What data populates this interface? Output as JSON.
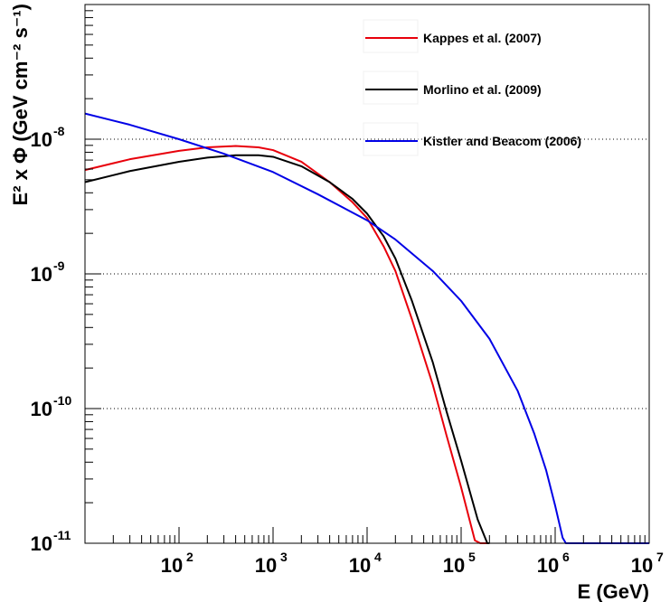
{
  "chart_data": {
    "type": "line",
    "title": "",
    "xlabel": "E (GeV)",
    "ylabel": "E² x Φ (GeV cm⁻² s⁻¹)",
    "xscale": "log",
    "yscale": "log",
    "xlim": [
      10,
      10000000
    ],
    "ylim": [
      1e-11,
      1e-07
    ],
    "grid": "horizontal dotted at major y ticks",
    "legend_position": "top-right",
    "x_ticks": [
      {
        "base": "10",
        "exp": "2",
        "value": 100
      },
      {
        "base": "10",
        "exp": "3",
        "value": 1000
      },
      {
        "base": "10",
        "exp": "4",
        "value": 10000
      },
      {
        "base": "10",
        "exp": "5",
        "value": 100000
      },
      {
        "base": "10",
        "exp": "6",
        "value": 1000000
      },
      {
        "base": "10",
        "exp": "7",
        "value": 10000000
      }
    ],
    "y_ticks": [
      {
        "base": "10",
        "exp": "-11",
        "value": 1e-11
      },
      {
        "base": "10",
        "exp": "-10",
        "value": 1e-10
      },
      {
        "base": "10",
        "exp": "-9",
        "value": 1e-09
      },
      {
        "base": "10",
        "exp": "-8",
        "value": 1e-08
      }
    ],
    "series": [
      {
        "name": "Kappes et al. (2007)",
        "color": "#e8000b",
        "x": [
          10,
          30,
          100,
          200,
          400,
          700,
          1000,
          2000,
          4000,
          7000,
          10000,
          15000,
          20000,
          30000,
          50000,
          70000,
          100000,
          140000,
          160000,
          200000
        ],
        "y": [
          5.9e-09,
          7.1e-09,
          8.2e-09,
          8.7e-09,
          8.9e-09,
          8.7e-09,
          8.3e-09,
          6.8e-09,
          4.8e-09,
          3.4e-09,
          2.6e-09,
          1.6e-09,
          1.05e-09,
          4.6e-10,
          1.5e-10,
          6.3e-11,
          2.6e-11,
          1.05e-11,
          1e-11,
          1e-11
        ]
      },
      {
        "name": "Morlino et al. (2009)",
        "color": "#000000",
        "x": [
          10,
          30,
          100,
          200,
          400,
          700,
          1000,
          2000,
          4000,
          7000,
          10000,
          15000,
          20000,
          30000,
          50000,
          70000,
          100000,
          150000,
          190000,
          200000
        ],
        "y": [
          4.8e-09,
          5.8e-09,
          6.8e-09,
          7.3e-09,
          7.6e-09,
          7.6e-09,
          7.4e-09,
          6.3e-09,
          4.8e-09,
          3.6e-09,
          2.8e-09,
          1.9e-09,
          1.3e-09,
          6.3e-10,
          2.2e-10,
          9.5e-11,
          4.1e-11,
          1.5e-11,
          1e-11,
          1e-11
        ]
      },
      {
        "name": "Kistler and Beacom (2006)",
        "color": "#0000e6",
        "x": [
          10,
          30,
          100,
          300,
          1000,
          3000,
          10000,
          20000,
          50000,
          100000,
          200000,
          400000,
          600000,
          800000,
          1000000,
          1200000,
          1300000,
          1500000,
          3000000,
          10000000
        ],
        "y": [
          1.55e-08,
          1.28e-08,
          1e-08,
          7.8e-09,
          5.7e-09,
          3.9e-09,
          2.5e-09,
          1.8e-09,
          1.05e-09,
          6.3e-10,
          3.3e-10,
          1.35e-10,
          6.5e-11,
          3.5e-11,
          1.9e-11,
          1.1e-11,
          1e-11,
          1e-11,
          1e-11,
          1e-11
        ]
      }
    ]
  }
}
